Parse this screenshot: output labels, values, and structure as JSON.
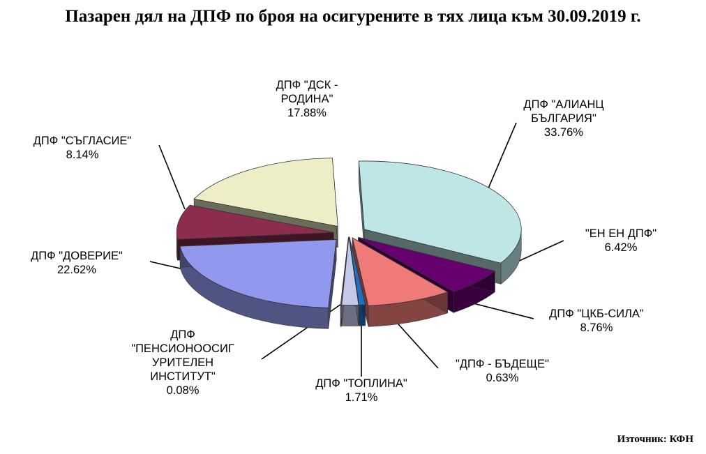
{
  "title": "Пазарен дял на ДПФ по броя на осигурените в тях лица към 30.09.2019 г.",
  "source": "Източник: КФН",
  "chart_data": {
    "type": "pie",
    "title": "Пазарен дял на ДПФ по броя на осигурените в тях лица към 30.09.2019 г.",
    "unit": "%",
    "slices": [
      {
        "id": "alianz",
        "label_lines": [
          "ДПФ \"АЛИАНЦ",
          "БЪЛГАРИЯ\""
        ],
        "value_text": "33.76%",
        "value": 33.76,
        "color": "#bfe6e6"
      },
      {
        "id": "enen",
        "label_lines": [
          "\"ЕН ЕН  ДПФ\""
        ],
        "value_text": "6.42%",
        "value": 6.42,
        "color": "#66006e"
      },
      {
        "id": "ckb",
        "label_lines": [
          "ДПФ \"ЦКБ-СИЛА\""
        ],
        "value_text": "8.76%",
        "value": 8.76,
        "color": "#ee7b78"
      },
      {
        "id": "badeshte",
        "label_lines": [
          "\"ДПФ - БЪДЕЩЕ\""
        ],
        "value_text": "0.63%",
        "value": 0.63,
        "color": "#1f6fc4"
      },
      {
        "id": "toplina",
        "label_lines": [
          "ДПФ \"ТОПЛИНА\""
        ],
        "value_text": "1.71%",
        "value": 1.71,
        "color": "#c4c9ea"
      },
      {
        "id": "pensiono",
        "label_lines": [
          "ДПФ",
          "\"ПЕНСИОНООСИГ",
          "УРИТЕЛЕН",
          "ИНСТИТУТ\""
        ],
        "value_text": "0.08%",
        "value": 0.08,
        "color": "#c8d2f2"
      },
      {
        "id": "doverie",
        "label_lines": [
          "ДПФ \"ДОВЕРИЕ\""
        ],
        "value_text": "22.62%",
        "value": 22.62,
        "color": "#9298ee"
      },
      {
        "id": "saglasie",
        "label_lines": [
          "ДПФ \"СЪГЛАСИЕ\""
        ],
        "value_text": "8.14%",
        "value": 8.14,
        "color": "#8c2d4f"
      },
      {
        "id": "dsk",
        "label_lines": [
          "ДПФ \"ДСК -",
          "РОДИНА\""
        ],
        "value_text": "17.88%",
        "value": 17.88,
        "color": "#eeeec6"
      }
    ],
    "style": "3d-exploded-pie",
    "legend": "none"
  }
}
